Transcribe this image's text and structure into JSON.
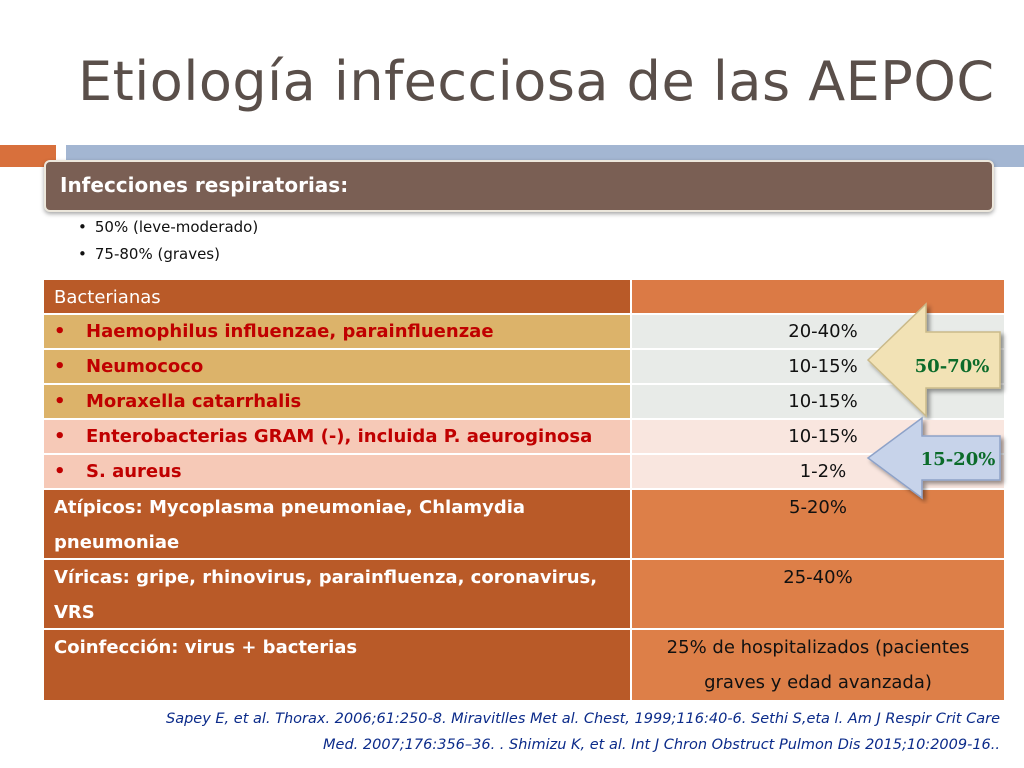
{
  "title": "Etiología infecciosa de las AEPOC",
  "header": "Infecciones respiratorias:",
  "bullets": [
    "50% (leve-moderado)",
    "75-80% (graves)"
  ],
  "table": {
    "head": "Bacterianas",
    "items": [
      {
        "name": "Haemophilus influenzae, parainfluenzae",
        "value": "20-40%"
      },
      {
        "name": "Neumococo",
        "value": "10-15%"
      },
      {
        "name": "Moraxella catarrhalis",
        "value": "10-15%"
      },
      {
        "name": "Enterobacterias GRAM (-), incluida P. aeuroginosa",
        "value": "10-15%"
      },
      {
        "name": "S. aureus",
        "value": "1-2%"
      }
    ],
    "atipicos": {
      "line1": "Atípicos: Mycoplasma pneumoniae, Chlamydia",
      "line2": "pneumoniae",
      "value": "5-20%"
    },
    "viricas": {
      "line1": "Víricas: gripe, rhinovirus, parainfluenza, coronavirus,",
      "line2": "VRS",
      "value": "25-40%"
    },
    "coinfeccion": {
      "label": "Coinfección: virus +  bacterias",
      "value1": "25% de hospitalizados (pacientes",
      "value2": "graves y edad avanzada)"
    }
  },
  "arrows": {
    "top": {
      "label": "50-70%",
      "fill": "#f2e2b5",
      "text_color": "#0b6b2a"
    },
    "bottom": {
      "label": "15-20%",
      "fill": "#c7d3ea",
      "text_color": "#0b6b2a"
    }
  },
  "reference": {
    "line1": "Sapey E, et al. Thorax. 2006;61:250-8. Miravitlles Met al. Chest, 1999;116:40-6. Sethi S,eta l. Am J Respir Crit Care",
    "line2": "Med. 2007;176:356–36. . Shimizu K, et al. Int J Chron Obstruct Pulmon Dis 2015;10:2009-16.."
  }
}
